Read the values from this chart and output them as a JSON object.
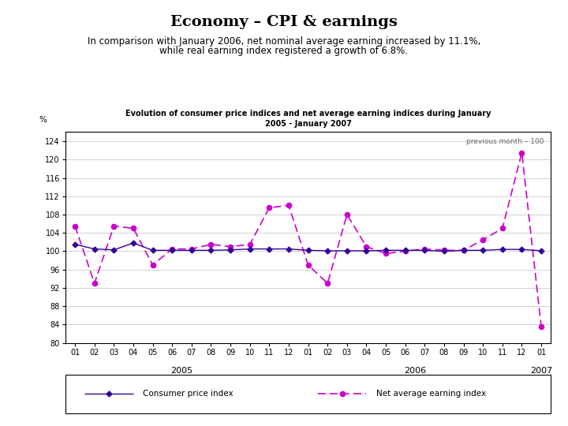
{
  "title": "Economy – CPI & earnings",
  "subtitle_line1": "In comparison with January 2006, net nominal average earning increased by 11.1%,",
  "subtitle_line2": "while real earning index registered a growth of 6.8%.",
  "chart_title": "Evolution of consumer price indices and net average earning indices during January\n2005 - January 2007",
  "annotation": "previous month – 100",
  "ylabel": "%",
  "ylim": [
    80,
    126
  ],
  "yticks": [
    80,
    84,
    88,
    92,
    96,
    100,
    104,
    108,
    112,
    116,
    120,
    124
  ],
  "x_labels": [
    "01",
    "02",
    "03",
    "04",
    "05",
    "06",
    "07",
    "08",
    "09",
    "10",
    "11",
    "12",
    "01",
    "02",
    "03",
    "04",
    "05",
    "06",
    "07",
    "08",
    "09",
    "10",
    "11",
    "12",
    "01"
  ],
  "year_labels": [
    [
      "2005",
      5.5
    ],
    [
      "2006",
      17.5
    ],
    [
      "2007",
      24.0
    ]
  ],
  "cpi_data": [
    101.5,
    100.5,
    100.3,
    101.8,
    100.2,
    100.2,
    100.2,
    100.2,
    100.3,
    100.5,
    100.5,
    100.5,
    100.2,
    100.1,
    100.1,
    100.1,
    100.2,
    100.2,
    100.2,
    100.0,
    100.2,
    100.2,
    100.4,
    100.4,
    100.1
  ],
  "net_earn_data": [
    105.5,
    93.0,
    105.5,
    105.0,
    97.0,
    100.5,
    100.5,
    101.5,
    101.0,
    101.5,
    109.5,
    110.0,
    97.0,
    93.0,
    108.0,
    101.0,
    99.5,
    100.0,
    100.5,
    100.2,
    100.2,
    102.5,
    105.0,
    121.5,
    83.5
  ],
  "cpi_color": "#330099",
  "net_earn_color": "#cc00cc",
  "legend_cpi": "Consumer price index",
  "legend_net": "Net average earning index",
  "bg_color": "#ffffff"
}
